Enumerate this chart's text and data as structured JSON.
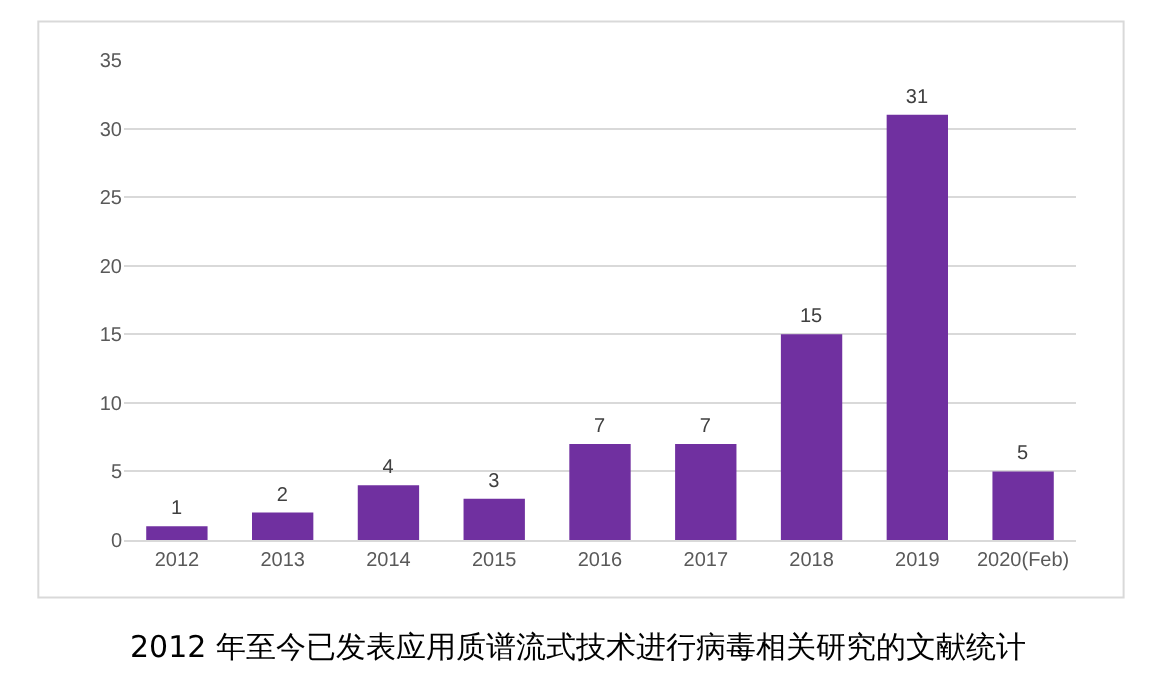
{
  "chart_data": {
    "type": "bar",
    "title": "2012 年至今已发表应用质谱流式技术进行病毒相关研究的文献统计",
    "categories": [
      "2012",
      "2013",
      "2014",
      "2015",
      "2016",
      "2017",
      "2018",
      "2019",
      "2020(Feb)"
    ],
    "values": [
      1,
      2,
      4,
      3,
      7,
      7,
      15,
      31,
      5
    ],
    "color": "#7030a0",
    "ylim": [
      0,
      35
    ],
    "yticks": [
      0,
      5,
      10,
      15,
      20,
      25,
      30,
      35
    ],
    "grid": "y",
    "data_labels": true
  }
}
